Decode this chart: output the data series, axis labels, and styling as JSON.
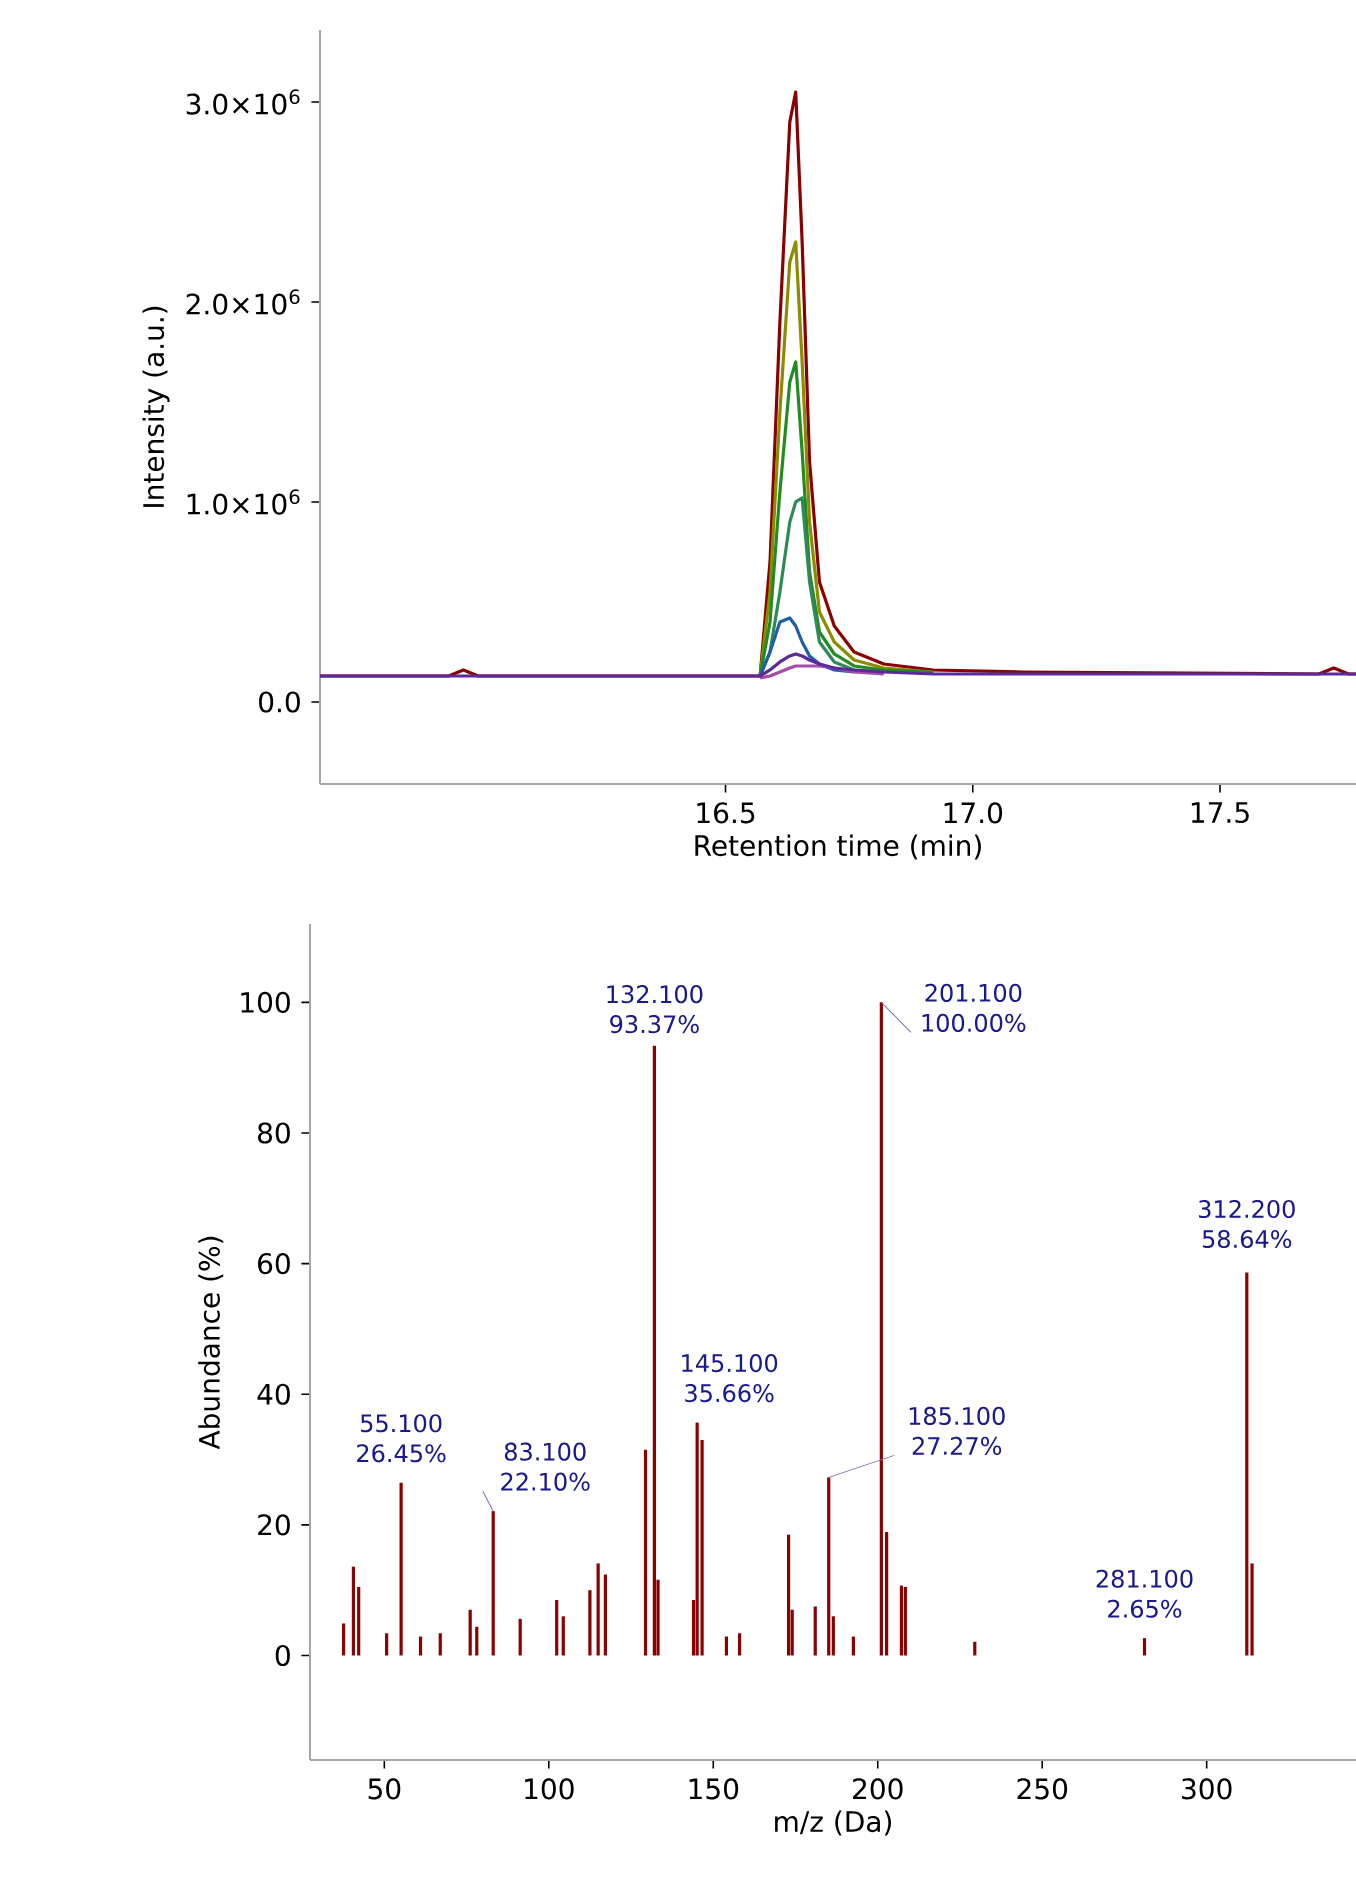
{
  "chart_data": [
    {
      "type": "line",
      "xlabel": "Retention time (min)",
      "ylabel": "Intensity (a.u.)",
      "xlim": [
        15.68,
        17.775
      ],
      "ylim": [
        -410000,
        3360000
      ],
      "xticks": [
        16.5,
        {
          "value": 17,
          "label": "17.0"
        },
        17.5
      ],
      "yticks": [
        {
          "value": 0,
          "label": "0.0"
        },
        {
          "value": 1000000,
          "label": "1.0×10$^{6}$"
        },
        {
          "value": 2000000,
          "label": "2.0×10$^{6}$"
        },
        {
          "value": 3000000,
          "label": "3.0×10$^{6}$"
        }
      ],
      "grid": false,
      "x": [
        15.68,
        15.94,
        15.97,
        16.0,
        16.57,
        16.59,
        16.61,
        16.63,
        16.642,
        16.655,
        16.67,
        16.69,
        16.72,
        16.76,
        16.82,
        16.92,
        17.1,
        17.7,
        17.73,
        17.76,
        17.775
      ],
      "series": [
        {
          "color": "#8b0000",
          "values": [
            130000,
            130000,
            160000,
            130000,
            130000,
            700000,
            1900000,
            2900000,
            3050000,
            2300000,
            1200000,
            600000,
            380000,
            250000,
            190000,
            160000,
            150000,
            140000,
            170000,
            140000,
            140000
          ]
        },
        {
          "color": "#8c8c00",
          "values": [
            null,
            null,
            null,
            null,
            130000,
            550000,
            1450000,
            2200000,
            2300000,
            1700000,
            900000,
            450000,
            300000,
            210000,
            170000,
            150000,
            null,
            null,
            null,
            null,
            null
          ]
        },
        {
          "color": "#228b22",
          "values": [
            null,
            null,
            null,
            null,
            130000,
            400000,
            1050000,
            1600000,
            1700000,
            1250000,
            650000,
            350000,
            240000,
            180000,
            160000,
            150000,
            null,
            null,
            null,
            null,
            null
          ]
        },
        {
          "color": "#2e8b57",
          "values": [
            null,
            null,
            null,
            null,
            130000,
            250000,
            550000,
            900000,
            1000000,
            1020000,
            600000,
            300000,
            200000,
            160000,
            150000,
            null,
            null,
            null,
            null,
            null,
            null
          ]
        },
        {
          "color": "#1f5fa8",
          "values": [
            null,
            null,
            null,
            null,
            130000,
            250000,
            400000,
            420000,
            380000,
            300000,
            230000,
            190000,
            160000,
            150000,
            null,
            null,
            null,
            null,
            null,
            null,
            null
          ]
        },
        {
          "color": "#a64ca6",
          "values": [
            null,
            null,
            null,
            null,
            120000,
            130000,
            150000,
            170000,
            180000,
            180000,
            180000,
            180000,
            170000,
            150000,
            140000,
            null,
            null,
            null,
            null,
            null,
            null
          ]
        },
        {
          "color": "#5a2a9a",
          "values": [
            130000,
            130000,
            130000,
            130000,
            130000,
            160000,
            200000,
            230000,
            240000,
            230000,
            210000,
            190000,
            170000,
            160000,
            150000,
            140000,
            140000,
            140000,
            140000,
            140000,
            140000
          ]
        }
      ]
    },
    {
      "type": "bar",
      "xlabel": "m/z (Da)",
      "ylabel": "Abundance (%)",
      "xlim": [
        27.4,
        345.4
      ],
      "ylim": [
        -16,
        112
      ],
      "xticks": [
        50,
        100,
        150,
        200,
        250,
        300
      ],
      "yticks": [
        0,
        20,
        40,
        60,
        80,
        100
      ],
      "grid": false,
      "color": "#8b0000",
      "x": [
        37.6,
        40.6,
        42.2,
        50.7,
        55.1,
        61,
        67,
        76.1,
        78.1,
        83.1,
        91.3,
        102.4,
        104.4,
        112.5,
        115,
        117.2,
        129.4,
        132.1,
        133.2,
        144,
        145.1,
        146.6,
        154,
        158,
        172.9,
        174,
        181,
        185.1,
        186.5,
        192.6,
        201.1,
        202.7,
        207.2,
        208.4,
        229.5,
        281.1,
        312.2,
        313.8
      ],
      "values": [
        4.9,
        13.6,
        10.5,
        3.4,
        26.45,
        2.9,
        3.4,
        7,
        4.4,
        22.1,
        5.6,
        8.5,
        6,
        10,
        14.1,
        12.4,
        31.5,
        93.37,
        11.6,
        8.5,
        35.66,
        33,
        2.9,
        3.4,
        18.5,
        7,
        7.5,
        27.27,
        6,
        2.9,
        100,
        18.9,
        10.7,
        10.5,
        2.1,
        2.65,
        58.64,
        14.1
      ],
      "annotations": [
        {
          "text": "55.100 26.45%",
          "x": 55.1,
          "y": 26.45
        },
        {
          "text": "83.100 22.10%",
          "x": 83.1,
          "y": 22.1
        },
        {
          "text": "132.100 93.37%",
          "x": 132.1,
          "y": 93.37
        },
        {
          "text": "145.100 35.66%",
          "x": 145.1,
          "y": 35.66
        },
        {
          "text": "185.100 27.27%",
          "x": 185.1,
          "y": 27.27
        },
        {
          "text": "201.100 100.00%",
          "x": 201.1,
          "y": 100
        },
        {
          "text": "281.100 2.65%",
          "x": 281.1,
          "y": 2.65
        },
        {
          "text": "312.200 58.64%",
          "x": 312.2,
          "y": 58.64
        }
      ]
    }
  ]
}
